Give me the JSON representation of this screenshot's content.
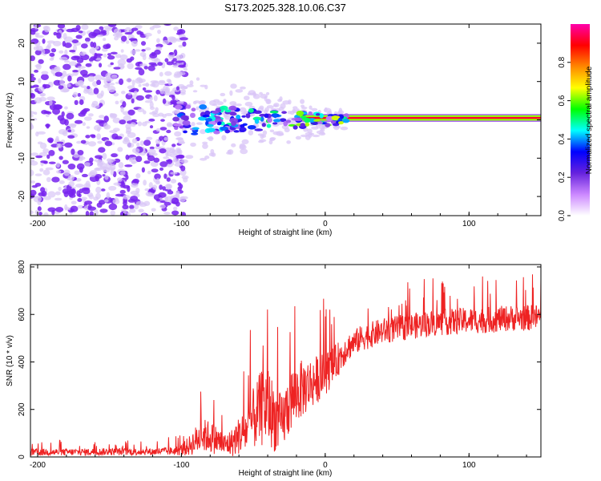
{
  "title": "S173.2025.328.10.06.C37",
  "colors": {
    "snr_line": "#ee2222",
    "axis": "#000000",
    "scatter_base": "#7722ee",
    "scatter_light": "#d9c6f7"
  },
  "chart_data": [
    {
      "type": "heatmap",
      "xlabel": "Height of straight line (km)",
      "ylabel": "Frequency (Hz)",
      "xlim": [
        -205,
        150
      ],
      "ylim": [
        -25,
        25
      ],
      "xticks": [
        -200,
        -100,
        0,
        100
      ],
      "xtick_labels": [
        "-200",
        "-100",
        "0",
        "100"
      ],
      "yticks": [
        -20,
        -10,
        0,
        10,
        20
      ],
      "ytick_labels": [
        "-20",
        "-10",
        "0",
        "10",
        "20"
      ],
      "noise_region_km": [
        -205,
        -105
      ],
      "signal_band": {
        "x_start": -20,
        "x_end": 150,
        "freq_hz": 0.5,
        "bandwidth_hz": 1.4
      },
      "colorbar": {
        "label": "Normalized spectral amplitude",
        "range": [
          0,
          1
        ],
        "ticks": [
          0.0,
          0.2,
          0.4,
          0.6,
          0.8
        ],
        "tick_labels": [
          "0.0",
          "0.2",
          "0.4",
          "0.6",
          "0.8"
        ],
        "stops": [
          "#ffffff",
          "#cc88ff",
          "#6622dd",
          "#0000ff",
          "#00ffff",
          "#00ff00",
          "#ffff00",
          "#ff8800",
          "#ff0000",
          "#ff00aa"
        ]
      }
    },
    {
      "type": "line",
      "xlabel": "Height of straight line (km)",
      "ylabel": "SNR (10 * v/v)",
      "xlim": [
        -205,
        150
      ],
      "ylim": [
        0,
        810
      ],
      "xticks": [
        -200,
        -100,
        0,
        100
      ],
      "xtick_labels": [
        "-200",
        "-100",
        "0",
        "100"
      ],
      "yticks": [
        0,
        200,
        400,
        600,
        800
      ],
      "ytick_labels": [
        "0",
        "200",
        "400",
        "600",
        "800"
      ],
      "x": [
        -205,
        -180,
        -150,
        -120,
        -105,
        -100,
        -95,
        -90,
        -85,
        -80,
        -75,
        -70,
        -65,
        -60,
        -55,
        -50,
        -45,
        -40,
        -35,
        -30,
        -25,
        -20,
        -15,
        -10,
        -5,
        0,
        5,
        10,
        15,
        20,
        25,
        30,
        40,
        50,
        60,
        70,
        80,
        90,
        100,
        110,
        120,
        130,
        140,
        150
      ],
      "y": [
        20,
        20,
        22,
        22,
        25,
        30,
        45,
        70,
        90,
        85,
        70,
        50,
        60,
        90,
        110,
        160,
        200,
        220,
        160,
        140,
        230,
        270,
        290,
        310,
        330,
        350,
        380,
        420,
        460,
        480,
        500,
        510,
        530,
        540,
        550,
        560,
        565,
        570,
        575,
        575,
        580,
        585,
        585,
        590
      ],
      "noise_amplitude": [
        15,
        15,
        15,
        15,
        18,
        25,
        40,
        60,
        70,
        70,
        60,
        50,
        60,
        80,
        100,
        130,
        160,
        170,
        140,
        120,
        140,
        130,
        120,
        110,
        100,
        90,
        80,
        70,
        60,
        55,
        55,
        55,
        55,
        55,
        55,
        55,
        55,
        55,
        55,
        55,
        55,
        55,
        55,
        55
      ]
    }
  ]
}
